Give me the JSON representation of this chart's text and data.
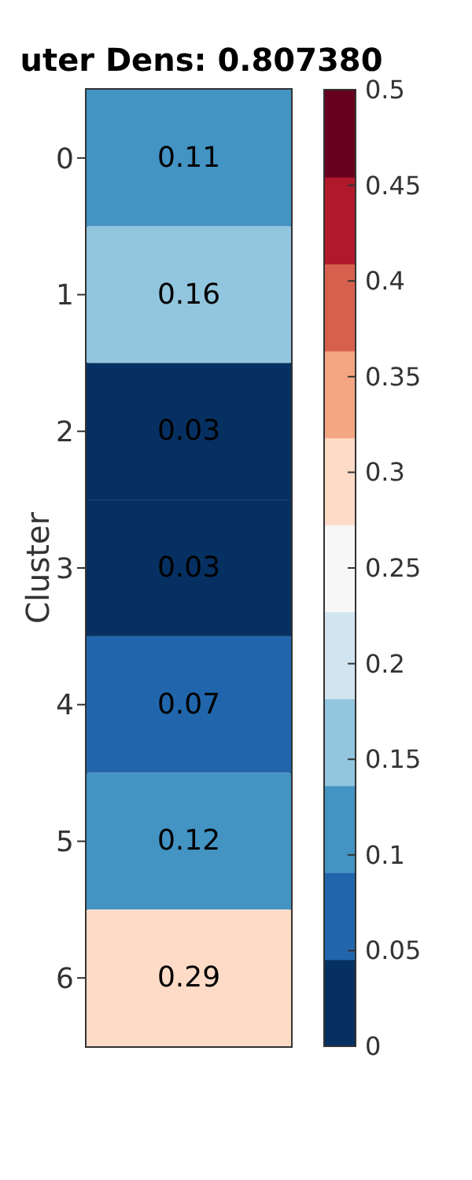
{
  "chart_data": {
    "type": "heatmap",
    "title": "uter Dens: 0.807380",
    "ylabel": "Cluster",
    "categories": [
      null
    ],
    "y_categories": [
      "0",
      "1",
      "2",
      "3",
      "4",
      "5",
      "6"
    ],
    "cells": [
      [
        0.11
      ],
      [
        0.16
      ],
      [
        0.03
      ],
      [
        0.03
      ],
      [
        0.07
      ],
      [
        0.12
      ],
      [
        0.29
      ]
    ],
    "data_labels": true,
    "clim": [
      0,
      0.5
    ],
    "cticks": [
      0,
      0.05,
      0.1,
      0.15,
      0.2,
      0.25,
      0.3,
      0.35,
      0.4,
      0.45,
      0.5
    ]
  }
}
